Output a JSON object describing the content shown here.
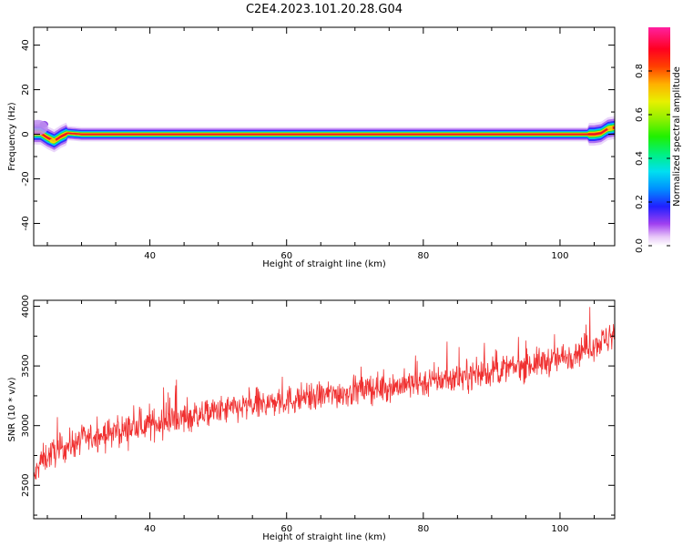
{
  "title": "C2E4.2023.101.20.28.G04",
  "colors": {
    "snr_line": "#f03030",
    "ridge": "#e8102a",
    "background": "#ffffff"
  },
  "colorbar": {
    "label": "Normalized spectral amplitude",
    "ticks": [
      "0.0",
      "0.2",
      "0.4",
      "0.6",
      "0.8"
    ],
    "tick_values": [
      0.0,
      0.2,
      0.4,
      0.6,
      0.8
    ],
    "range": [
      0,
      1
    ],
    "colormap": "gist_ncar-like (white→purple→blue→cyan→green→yellow→orange→red→magenta)"
  },
  "chart_data": [
    {
      "type": "heatmap",
      "title": "C2E4.2023.101.20.28.G04",
      "xlabel": "Height of straight line (km)",
      "ylabel": "Frequency (Hz)",
      "xlim": [
        23,
        108
      ],
      "ylim": [
        -50,
        48
      ],
      "xticks": [
        40,
        60,
        80,
        100
      ],
      "xtick_labels": [
        "40",
        "60",
        "80",
        "100"
      ],
      "yticks": [
        40,
        20,
        0,
        -20,
        -40
      ],
      "ytick_labels": [
        "40",
        "20",
        "0",
        "-20",
        "-40"
      ],
      "grid": false,
      "ridge": {
        "description": "peak spectral amplitude near 0 Hz across all heights",
        "x": [
          24,
          25,
          26,
          27,
          28,
          30,
          40,
          60,
          80,
          100,
          104,
          105,
          106,
          107,
          108
        ],
        "y": [
          0.5,
          -1.5,
          -3,
          -1,
          0.5,
          0,
          0,
          0,
          0,
          0,
          0,
          0,
          0.5,
          2.5,
          3
        ]
      }
    },
    {
      "type": "line",
      "xlabel": "Height of straight line (km)",
      "ylabel": "SNR (10 * v/v)",
      "xlim": [
        23,
        108
      ],
      "ylim": [
        2220,
        4050
      ],
      "xticks": [
        40,
        60,
        80,
        100
      ],
      "xtick_labels": [
        "40",
        "60",
        "80",
        "100"
      ],
      "yticks": [
        2500,
        3000,
        3500,
        4000
      ],
      "ytick_labels": [
        "2500",
        "3000",
        "3500",
        "4000"
      ],
      "grid": false,
      "trend": {
        "x": [
          23,
          24,
          26,
          30,
          40,
          50,
          60,
          70,
          80,
          90,
          100,
          105,
          108
        ],
        "y": [
          2550,
          2700,
          2780,
          2880,
          3010,
          3120,
          3210,
          3290,
          3360,
          3450,
          3560,
          3680,
          3750
        ]
      },
      "noise_amplitude": 160
    }
  ]
}
